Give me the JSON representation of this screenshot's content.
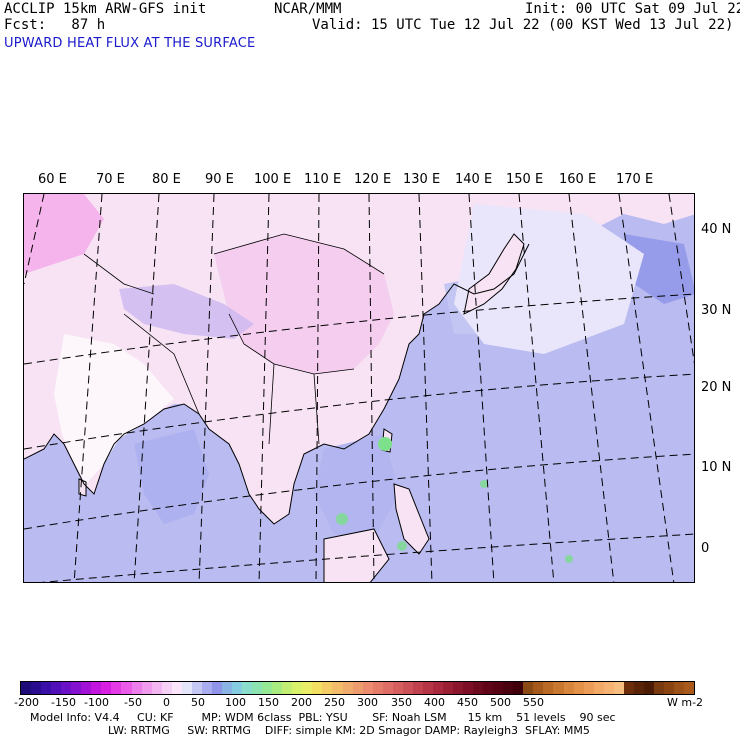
{
  "header": {
    "model": "ACCLIP 15km ARW-GFS init",
    "forecast": "Fcst:   87 h",
    "center": "NCAR/MMM",
    "init": "Init: 00 UTC Sat 09 Jul 22",
    "valid": "Valid: 15 UTC Tue 12 Jul 22 (00 KST Wed 13 Jul 22)",
    "field": "UPWARD HEAT FLUX AT THE SURFACE"
  },
  "map": {
    "lon_labels": [
      "60 E",
      "70 E",
      "80 E",
      "90 E",
      "100 E",
      "110 E",
      "120 E",
      "130 E",
      "140 E",
      "150 E",
      "160 E",
      "170 E"
    ],
    "lat_labels": [
      "40 N",
      "30 N",
      "20 N",
      "10 N",
      "0"
    ],
    "colors": {
      "land_low": "#f6d9f2",
      "land_neg": "#f2a6e8",
      "ocean": "#b7b8f0",
      "ocean_dark": "#8c92e8",
      "green": "#7de0a0",
      "coast": "#000000"
    }
  },
  "colorbar": {
    "labels": [
      "-200",
      "-150",
      "-100",
      "-50",
      "0",
      "50",
      "100",
      "150",
      "200",
      "250",
      "300",
      "350",
      "400",
      "450",
      "500",
      "550"
    ],
    "unit": "W m-2",
    "colors": [
      "#1e0b77",
      "#2a0d8e",
      "#3a10a8",
      "#5210b8",
      "#6a10c6",
      "#8411cf",
      "#a112d6",
      "#c114dc",
      "#d81ee0",
      "#e43be6",
      "#ea5ce8",
      "#ee7dec",
      "#f19bef",
      "#f3b6f2",
      "#f7d0f6",
      "#fbe6fb",
      "#e6e6fb",
      "#c6c8f4",
      "#a9adf0",
      "#8f96ea",
      "#8ab3e6",
      "#86cce0",
      "#8adccb",
      "#8de3b0",
      "#95e894",
      "#a8ec80",
      "#c2ef73",
      "#d8f06a",
      "#eaee66",
      "#f3e063",
      "#f4cd66",
      "#f2bc6a",
      "#f0ac6d",
      "#ee9c6e",
      "#ea8c6d",
      "#e57c6a",
      "#de6d66",
      "#d65e5f",
      "#cc5057",
      "#c1424f",
      "#b53546",
      "#a8293e",
      "#9a1f35",
      "#8b162d",
      "#7c0f25",
      "#6e0a1f",
      "#610619",
      "#550314",
      "#4a0110",
      "#3f000c",
      "#8b4a14",
      "#a55a1c",
      "#b96a25",
      "#c97830",
      "#d8863c",
      "#e3924a",
      "#ec9e58",
      "#f2aa66",
      "#f5b474",
      "#f7be82",
      "#6b2d0a",
      "#5a2408",
      "#4a1c06",
      "#7a3a10",
      "#8a4412",
      "#9a5016",
      "#a85a1a"
    ]
  },
  "model_info": {
    "line1": "Model Info: V4.4     CU: KF        MP: WDM 6class  PBL: YSU       SF: Noah LSM      15 km    51 levels    90 sec",
    "line2": "LW: RRTMG     SW: RRTMG    DIFF: simple KM: 2D Smagor DAMP: Rayleigh3  SFLAY: MM5"
  }
}
